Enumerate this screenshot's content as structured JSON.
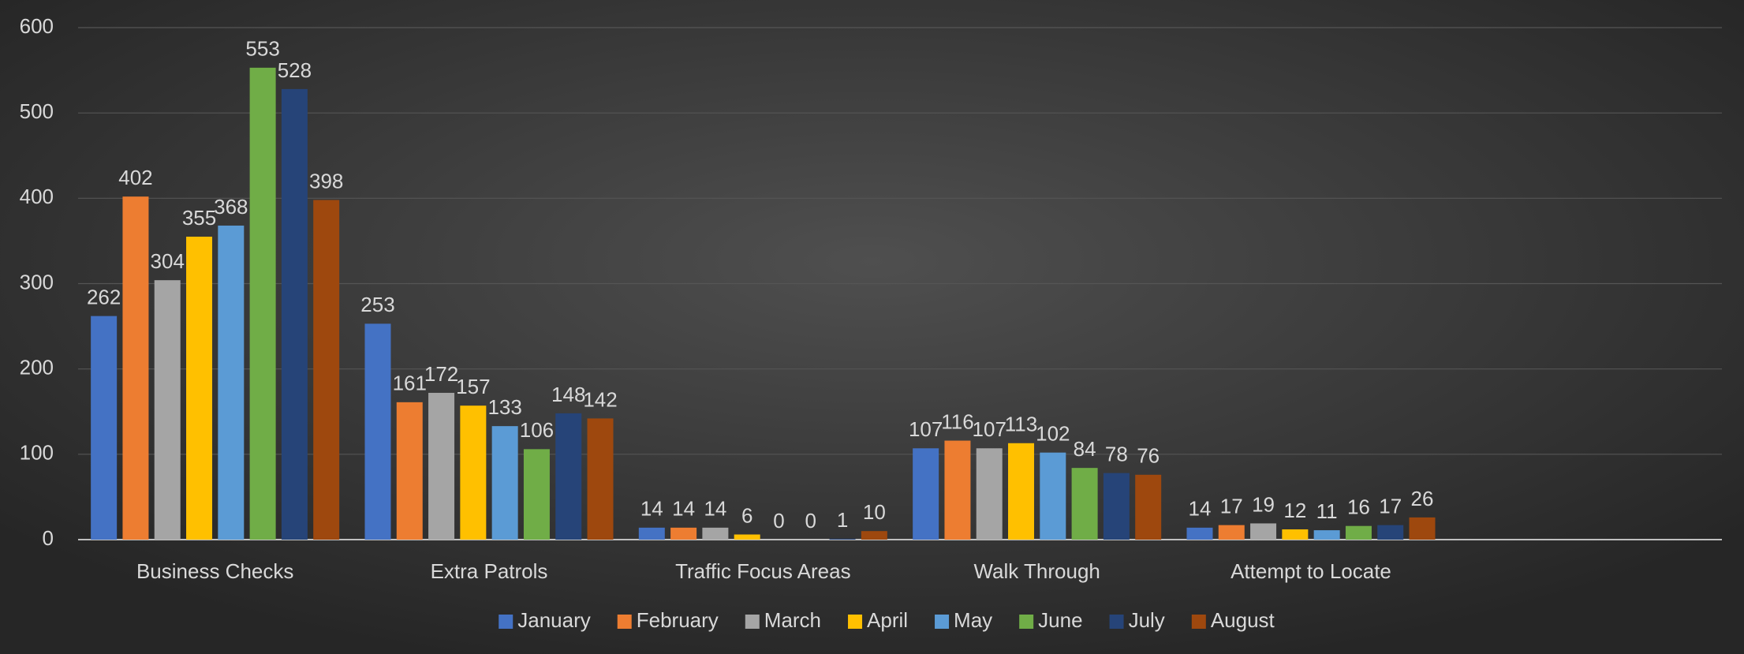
{
  "chart_data": {
    "type": "bar",
    "categories": [
      "Business Checks",
      "Extra Patrols",
      "Traffic Focus Areas",
      "Walk Through",
      "Attempt to Locate",
      null
    ],
    "series": [
      {
        "name": "January",
        "color": "#4472c4",
        "values": [
          262,
          253,
          14,
          107,
          14,
          null
        ]
      },
      {
        "name": "February",
        "color": "#ed7d31",
        "values": [
          402,
          161,
          14,
          116,
          17,
          null
        ]
      },
      {
        "name": "March",
        "color": "#a5a5a5",
        "values": [
          304,
          172,
          14,
          107,
          19,
          null
        ]
      },
      {
        "name": "April",
        "color": "#ffc000",
        "values": [
          355,
          157,
          6,
          113,
          12,
          null
        ]
      },
      {
        "name": "May",
        "color": "#5b9bd5",
        "values": [
          368,
          133,
          0,
          102,
          11,
          null
        ]
      },
      {
        "name": "June",
        "color": "#70ad47",
        "values": [
          553,
          106,
          0,
          84,
          16,
          null
        ]
      },
      {
        "name": "July",
        "color": "#264478",
        "values": [
          528,
          148,
          1,
          78,
          17,
          null
        ]
      },
      {
        "name": "August",
        "color": "#9e480e",
        "values": [
          398,
          142,
          10,
          76,
          26,
          null
        ]
      }
    ],
    "ylim": [
      0,
      600
    ],
    "yticks": [
      0,
      100,
      200,
      300,
      400,
      500,
      600
    ],
    "grid": true,
    "legend": "bottom"
  }
}
